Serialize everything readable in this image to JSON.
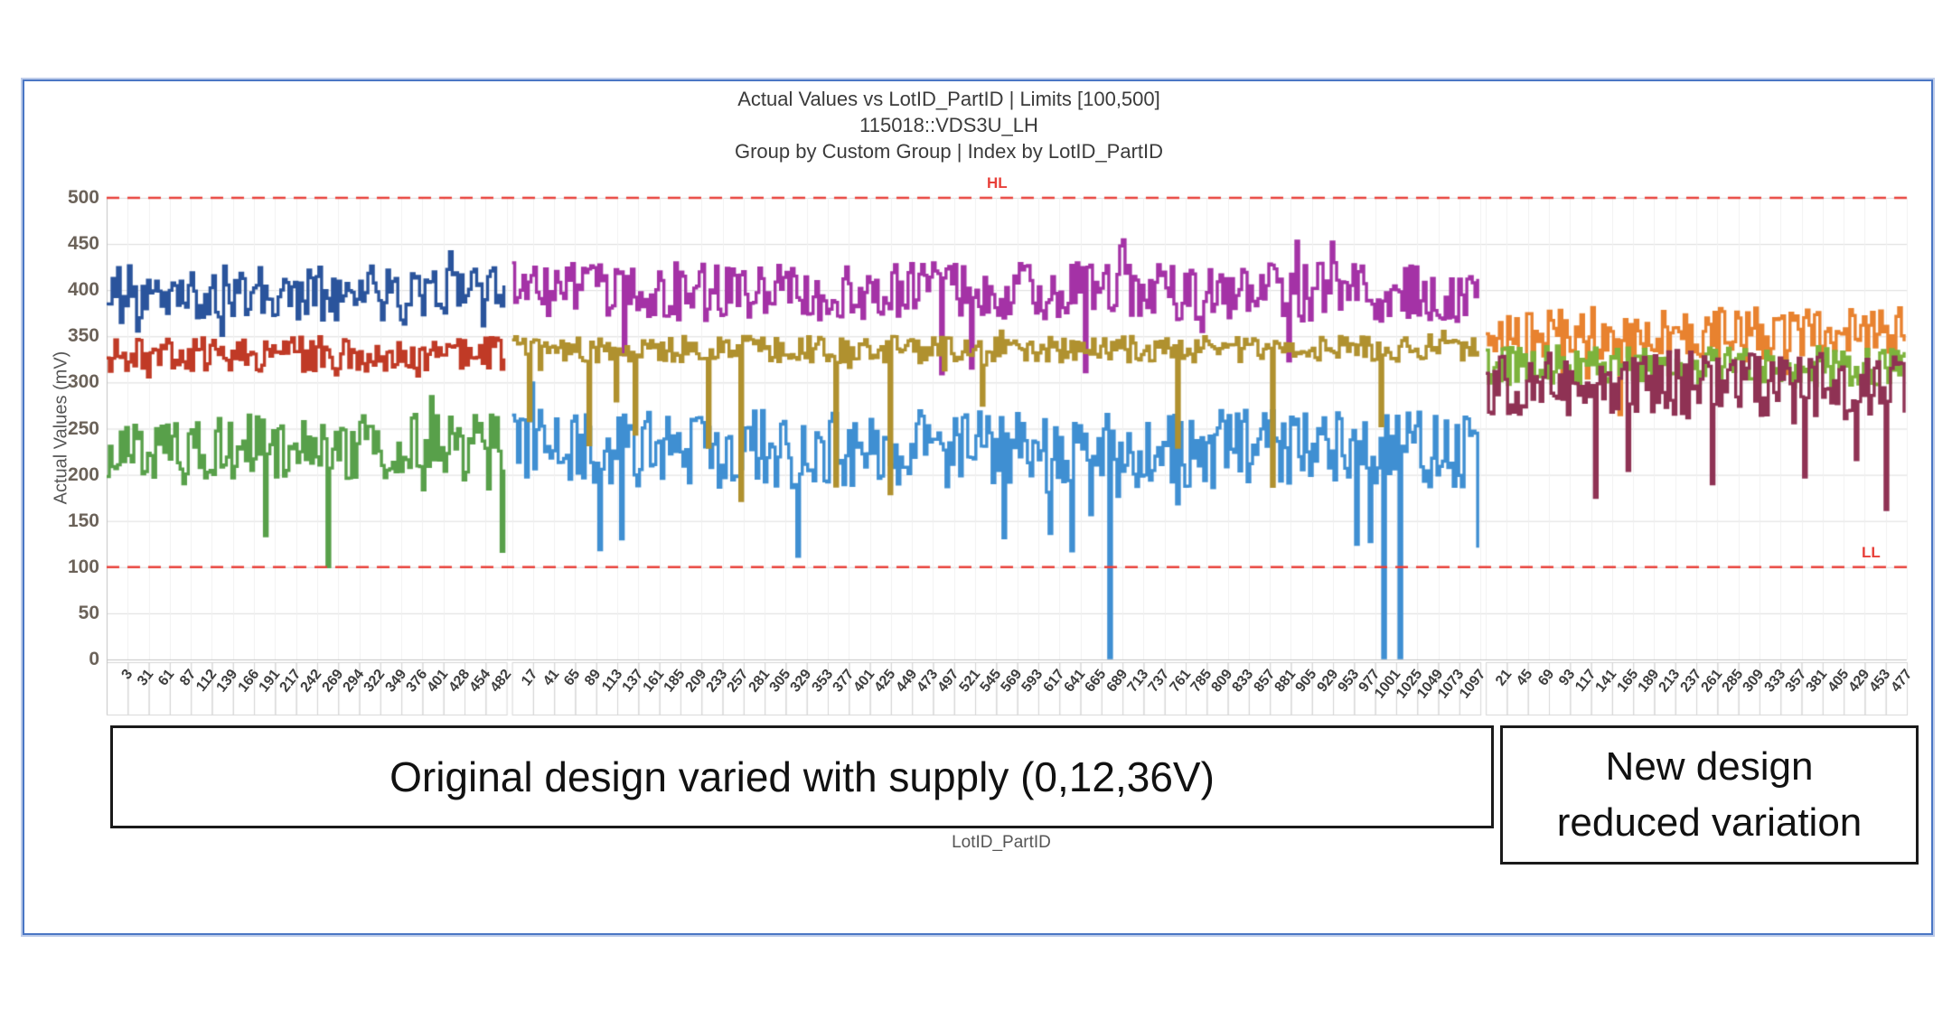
{
  "chart_data": {
    "type": "line",
    "title_lines": [
      "Actual Values vs LotID_PartID | Limits [100,500]",
      "115018::VDS3U_LH",
      "Group by Custom Group | Index by LotID_PartID"
    ],
    "ylabel": "Actual Values (mV)",
    "xlabel": "LotID_PartID",
    "ylim": [
      0,
      500
    ],
    "yticks": [
      0,
      50,
      100,
      150,
      200,
      250,
      300,
      350,
      400,
      450,
      500
    ],
    "grid": "horizontal gray lines every 50, faint vertical lines per index cell",
    "legend": "none",
    "limits": {
      "color": "#e8403a",
      "style": "dashed",
      "high": {
        "value": 500,
        "label": "HL"
      },
      "low": {
        "value": 100,
        "label": "LL"
      }
    },
    "groups": [
      {
        "id": "original-design-left-block",
        "ticks": [
          3,
          31,
          61,
          87,
          112,
          139,
          166,
          191,
          217,
          242,
          269,
          294,
          322,
          349,
          376,
          401,
          428,
          454,
          482
        ],
        "series": [
          {
            "name": "dark-blue",
            "color": "#2a549c",
            "mean": 397,
            "amp": 30,
            "approx_range": [
              355,
              460
            ],
            "spike": {
              "prob": 0.012,
              "lo": 350,
              "hi": 368
            }
          },
          {
            "name": "brick-red",
            "color": "#c03a26",
            "mean": 331,
            "amp": 19,
            "approx_range": [
              300,
              365
            ],
            "spike": {
              "prob": 0.012,
              "lo": 296,
              "hi": 308
            }
          },
          {
            "name": "green",
            "color": "#58a04a",
            "mean": 232,
            "amp": 36,
            "approx_range": [
              150,
              285
            ],
            "spike": {
              "prob": 0.015,
              "lo": 100,
              "hi": 160
            }
          }
        ]
      },
      {
        "id": "original-design-middle-block",
        "ticks": [
          17,
          41,
          65,
          89,
          113,
          137,
          161,
          185,
          209,
          233,
          257,
          281,
          305,
          329,
          353,
          377,
          401,
          425,
          449,
          473,
          497,
          521,
          545,
          569,
          593,
          617,
          641,
          665,
          689,
          713,
          737,
          761,
          785,
          809,
          833,
          857,
          881,
          905,
          929,
          953,
          977,
          1001,
          1025,
          1049,
          1073,
          1097
        ],
        "series": [
          {
            "name": "light-blue",
            "color": "#3f8fd2",
            "mean": 228,
            "amp": 42,
            "approx_range": [
              110,
              305
            ],
            "spike": {
              "prob": 0.03,
              "lo": 108,
              "hi": 165
            },
            "zero_spike_fractions": [
              0.617,
              0.9,
              0.915
            ]
          },
          {
            "name": "magenta",
            "color": "#a432a6",
            "mean": 398,
            "amp": 32,
            "approx_range": [
              305,
              465
            ],
            "spike": {
              "prob": 0.02,
              "lo": 305,
              "hi": 345
            }
          },
          {
            "name": "dark-khaki",
            "color": "#b0912f",
            "mean": 336,
            "amp": 14,
            "approx_range": [
              150,
              365
            ],
            "spike": {
              "prob": 0.025,
              "lo": 150,
              "hi": 290
            }
          }
        ]
      },
      {
        "id": "new-design-right-block",
        "ticks": [
          21,
          45,
          69,
          93,
          117,
          141,
          165,
          189,
          213,
          237,
          261,
          285,
          309,
          333,
          357,
          381,
          405,
          429,
          453,
          477
        ],
        "series": [
          {
            "name": "orange",
            "color": "#e8822f",
            "mean": 352,
            "amp": 30,
            "approx_range": [
              240,
              420
            ],
            "spike": {
              "prob": 0.012,
              "lo": 240,
              "hi": 285
            }
          },
          {
            "name": "light-green",
            "color": "#7cb33c",
            "mean": 318,
            "amp": 22,
            "approx_range": [
              290,
              345
            ]
          },
          {
            "name": "maroon",
            "color": "#8f3254",
            "mean": 298,
            "amp": 38,
            "approx_range": [
              155,
              370
            ],
            "spike": {
              "prob": 0.02,
              "lo": 158,
              "hi": 225
            }
          }
        ]
      }
    ]
  },
  "annotations": {
    "original_box": {
      "text": "Original design varied with supply (0,12,36V)"
    },
    "new_box": {
      "line1": "New design",
      "line2": "reduced variation"
    }
  }
}
